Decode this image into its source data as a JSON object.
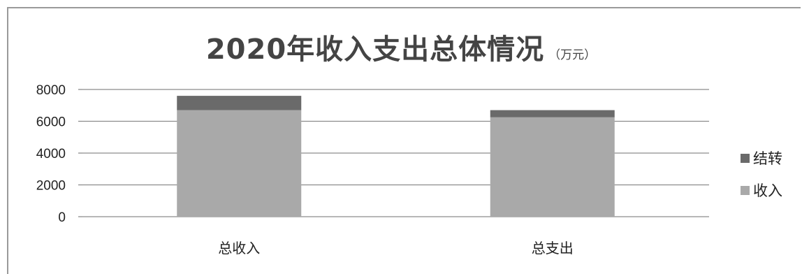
{
  "chart_data": {
    "type": "bar",
    "stacked": true,
    "title": "2020年收入支出总体情况",
    "title_unit": "（万元）",
    "categories": [
      "总收入",
      "总支出"
    ],
    "series": [
      {
        "name": "收入",
        "values": [
          6700,
          6250
        ],
        "color": "#a9a9a9"
      },
      {
        "name": "结转",
        "values": [
          900,
          450
        ],
        "color": "#6a6a6a"
      }
    ],
    "legend_order": [
      "结转",
      "收入"
    ],
    "ylim": [
      0,
      8000
    ],
    "yticks": [
      0,
      2000,
      4000,
      6000,
      8000
    ],
    "grid": true,
    "legend_position": "right",
    "xlabel": "",
    "ylabel": ""
  }
}
